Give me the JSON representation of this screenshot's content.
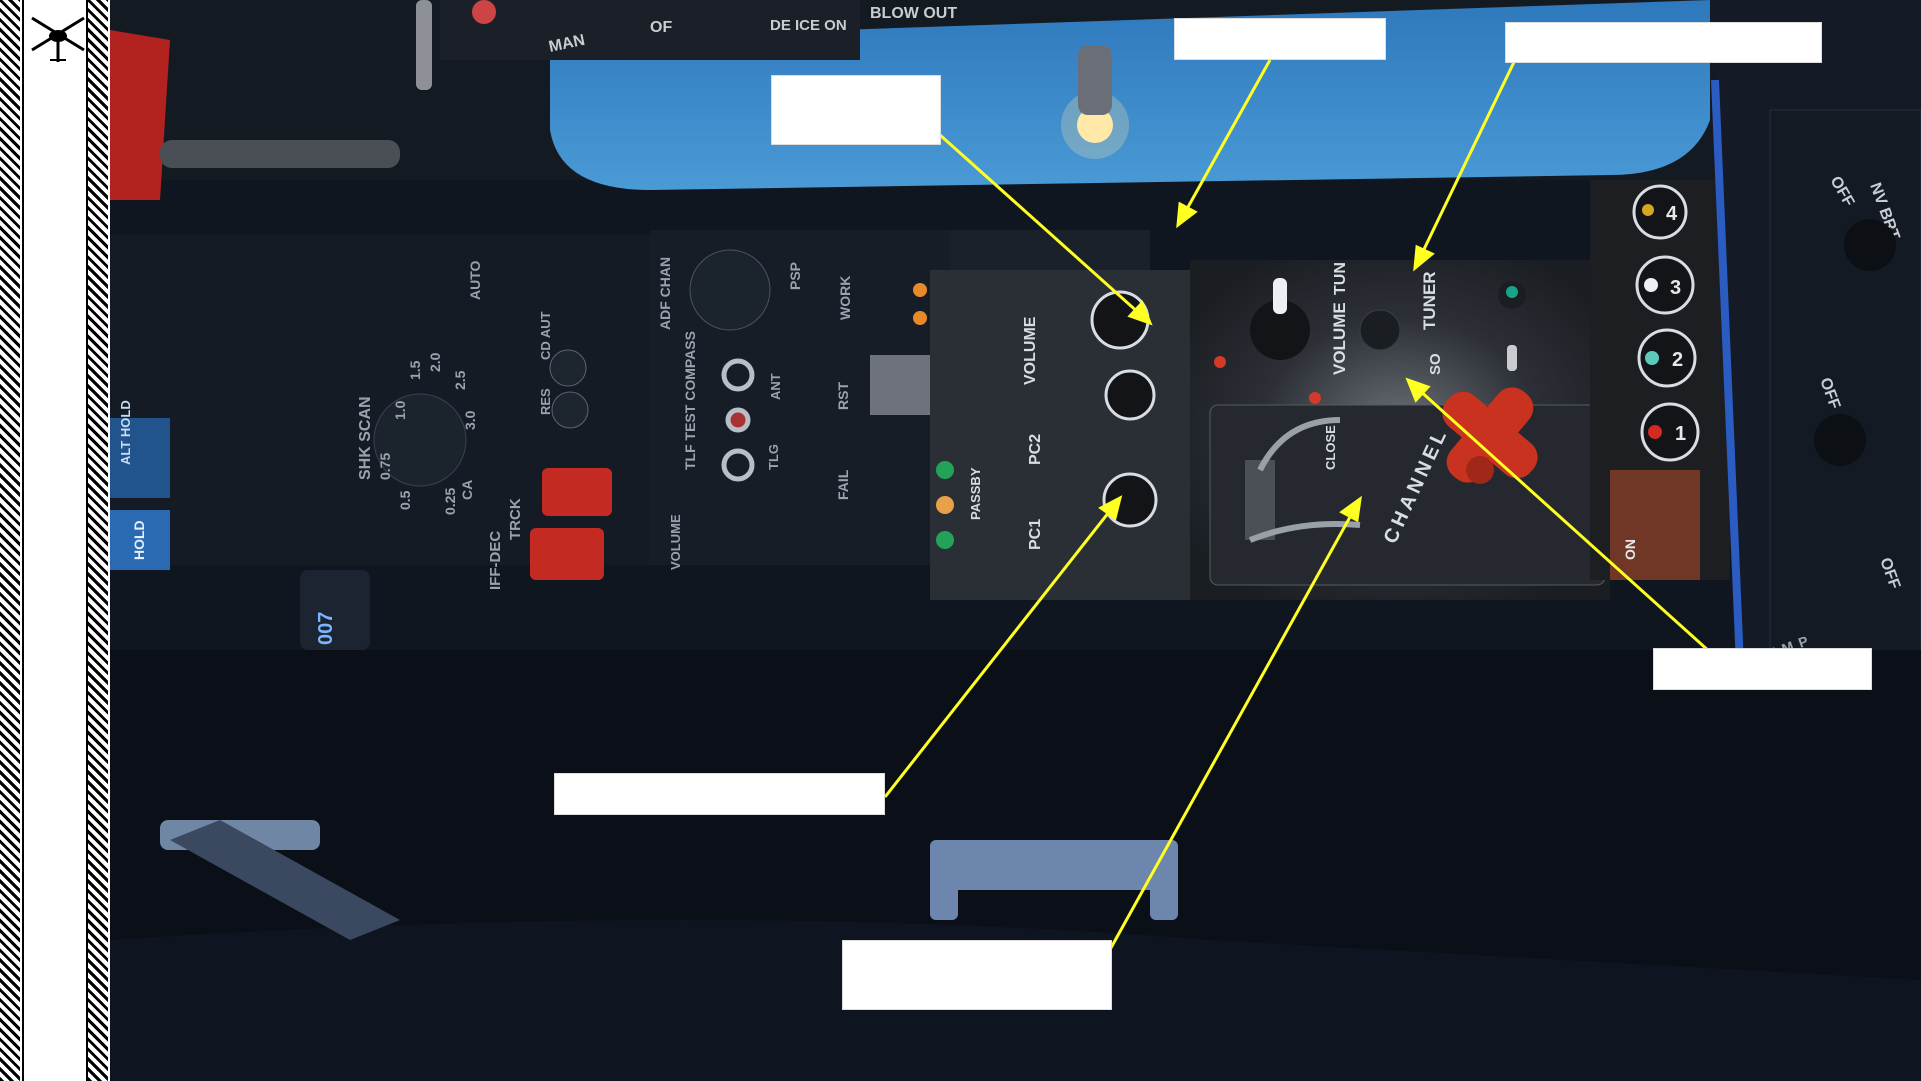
{
  "panel_labels": {
    "tun": "TUN",
    "volume": "VOLUME",
    "tuner": "TUNER",
    "so": "SO",
    "close": "CLOSE",
    "channel": "CHANNEL",
    "pc1": "PC1",
    "pc2": "PC2",
    "passby": "PASSBY",
    "work": "WORK",
    "rst": "RST",
    "fail": "FAIL",
    "tlf_test_compass": "TLF TEST COMPASS",
    "tlg": "TLG",
    "ant": "ANT",
    "psp": "PSP",
    "adf_chan": "ADF CHAN",
    "shk_scan": "SHK SCAN",
    "auto": "AUTO",
    "iff_dec": "IFF-DEC",
    "trck": "TRCK",
    "ca": "CA",
    "res": "RES",
    "cd_aut": "CD AUT",
    "hold": "HOLD",
    "alt_hold": "ALT HOLD",
    "man": "MAN",
    "of": "OF",
    "deice_on": "DE ICE ON",
    "blow_out": "BLOW OUT",
    "off": "OFF",
    "nv_brt": "NV BRT",
    "selector_temp": "SELECTOR TEMP",
    "on": "ON",
    "counter": "007",
    "scan_scale": [
      "0.75",
      "1.0",
      "1.5",
      "2.0",
      "2.5",
      "3.0",
      "0.5",
      "0.25"
    ],
    "channel_buttons": [
      "4",
      "3",
      "2",
      "1"
    ]
  },
  "colors": {
    "callout_box": "#ffffff",
    "leader_line": "#ffff22",
    "channel_cross": "#c8321e",
    "panel_blue": "#3a86c8"
  }
}
